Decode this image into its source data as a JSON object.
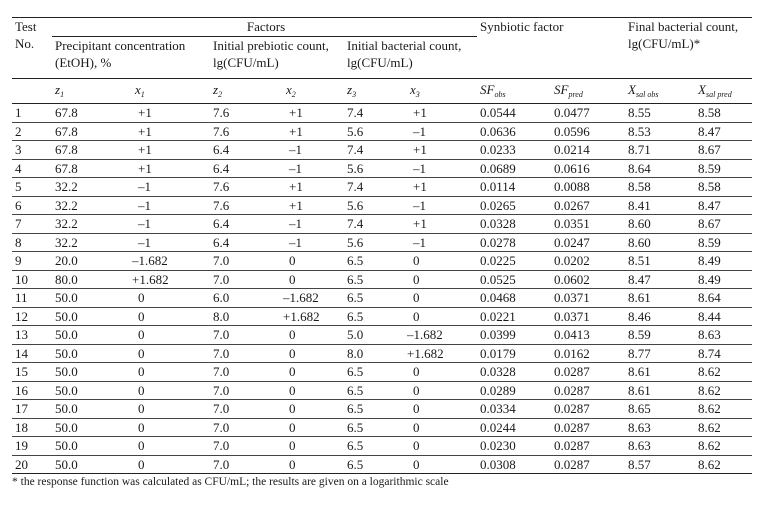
{
  "header": {
    "test_no": "Test No.",
    "factors": "Factors",
    "synbiotic": "Synbiotic factor",
    "final_count": "Final bacterial count, lg(CFU/mL)*",
    "precipitant": "Precipitant concentration (EtOH), %",
    "prebiotic": "Initial prebiotic count, lg(CFU/mL)",
    "bacterial": "Initial bacterial count, lg(CFU/mL)",
    "symbols": {
      "z1": "z",
      "z1_sub": "1",
      "x1": "x",
      "x1_sub": "1",
      "z2": "z",
      "z2_sub": "2",
      "x2": "x",
      "x2_sub": "2",
      "z3": "z",
      "z3_sub": "3",
      "x3": "x",
      "x3_sub": "3",
      "sf_obs": "SF",
      "sf_obs_sub": "obs",
      "sf_pred": "SF",
      "sf_pred_sub": "pred",
      "x_obs": "X",
      "x_obs_sub": "sal obs",
      "x_pred": "X",
      "x_pred_sub": "sal pred"
    }
  },
  "rows": [
    [
      "1",
      "67.8",
      "+1",
      "7.6",
      "+1",
      "7.4",
      "+1",
      "0.0544",
      "0.0477",
      "8.55",
      "8.58"
    ],
    [
      "2",
      "67.8",
      "+1",
      "7.6",
      "+1",
      "5.6",
      "–1",
      "0.0636",
      "0.0596",
      "8.53",
      "8.47"
    ],
    [
      "3",
      "67.8",
      "+1",
      "6.4",
      "–1",
      "7.4",
      "+1",
      "0.0233",
      "0.0214",
      "8.71",
      "8.67"
    ],
    [
      "4",
      "67.8",
      "+1",
      "6.4",
      "–1",
      "5.6",
      "–1",
      "0.0689",
      "0.0616",
      "8.64",
      "8.59"
    ],
    [
      "5",
      "32.2",
      "–1",
      "7.6",
      "+1",
      "7.4",
      "+1",
      "0.0114",
      "0.0088",
      "8.58",
      "8.58"
    ],
    [
      "6",
      "32.2",
      "–1",
      "7.6",
      "+1",
      "5.6",
      "–1",
      "0.0265",
      "0.0267",
      "8.41",
      "8.47"
    ],
    [
      "7",
      "32.2",
      "–1",
      "6.4",
      "–1",
      "7.4",
      "+1",
      "0.0328",
      "0.0351",
      "8.60",
      "8.67"
    ],
    [
      "8",
      "32.2",
      "–1",
      "6.4",
      "–1",
      "5.6",
      "–1",
      "0.0278",
      "0.0247",
      "8.60",
      "8.59"
    ],
    [
      "9",
      "20.0",
      "–1.682",
      "7.0",
      "0",
      "6.5",
      "0",
      "0.0225",
      "0.0202",
      "8.51",
      "8.49"
    ],
    [
      "10",
      "80.0",
      "+1.682",
      "7.0",
      "0",
      "6.5",
      "0",
      "0.0525",
      "0.0602",
      "8.47",
      "8.49"
    ],
    [
      "11",
      "50.0",
      "0",
      "6.0",
      "–1.682",
      "6.5",
      "0",
      "0.0468",
      "0.0371",
      "8.61",
      "8.64"
    ],
    [
      "12",
      "50.0",
      "0",
      "8.0",
      "+1.682",
      "6.5",
      "0",
      "0.0221",
      "0.0371",
      "8.46",
      "8.44"
    ],
    [
      "13",
      "50.0",
      "0",
      "7.0",
      "0",
      "5.0",
      "–1.682",
      "0.0399",
      "0.0413",
      "8.59",
      "8.63"
    ],
    [
      "14",
      "50.0",
      "0",
      "7.0",
      "0",
      "8.0",
      "+1.682",
      "0.0179",
      "0.0162",
      "8.77",
      "8.74"
    ],
    [
      "15",
      "50.0",
      "0",
      "7.0",
      "0",
      "6.5",
      "0",
      "0.0328",
      "0.0287",
      "8.61",
      "8.62"
    ],
    [
      "16",
      "50.0",
      "0",
      "7.0",
      "0",
      "6.5",
      "0",
      "0.0289",
      "0.0287",
      "8.61",
      "8.62"
    ],
    [
      "17",
      "50.0",
      "0",
      "7.0",
      "0",
      "6.5",
      "0",
      "0.0334",
      "0.0287",
      "8.65",
      "8.62"
    ],
    [
      "18",
      "50.0",
      "0",
      "7.0",
      "0",
      "6.5",
      "0",
      "0.0244",
      "0.0287",
      "8.63",
      "8.62"
    ],
    [
      "19",
      "50.0",
      "0",
      "7.0",
      "0",
      "6.5",
      "0",
      "0.0230",
      "0.0287",
      "8.63",
      "8.62"
    ],
    [
      "20",
      "50.0",
      "0",
      "7.0",
      "0",
      "6.5",
      "0",
      "0.0308",
      "0.0287",
      "8.57",
      "8.62"
    ]
  ],
  "footnote": "* the response function was calculated as CFU/mL; the results are given on a logarithmic scale"
}
